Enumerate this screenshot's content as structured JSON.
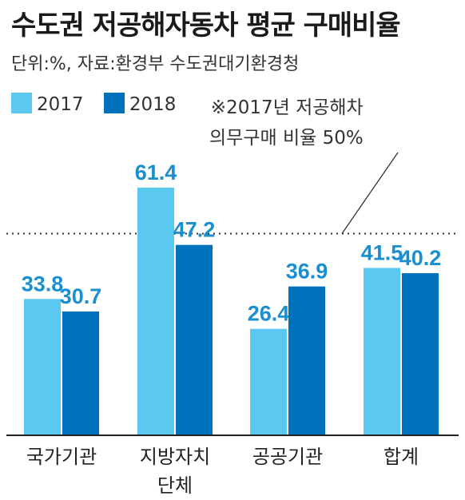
{
  "header": {
    "title": "수도권 저공해자동차 평균 구매비율",
    "subtitle": "단위:%, 자료:환경부 수도권대기환경청"
  },
  "legend": {
    "items": [
      {
        "label": "2017",
        "color": "#5bc8f2"
      },
      {
        "label": "2018",
        "color": "#0072bc"
      }
    ]
  },
  "note": {
    "line1": "※2017년 저공해차",
    "line2": "의무구매 비율 50%"
  },
  "colors": {
    "value_text": "#1a8fd0",
    "baseline": "#222222",
    "reference_line": "#333333"
  },
  "chart_data": {
    "type": "bar",
    "categories": [
      "국가기관",
      "지방자치\n단체",
      "공공기관",
      "합계"
    ],
    "series": [
      {
        "name": "2017",
        "values": [
          33.8,
          61.4,
          26.4,
          41.5
        ]
      },
      {
        "name": "2018",
        "values": [
          30.7,
          47.2,
          36.9,
          40.2
        ]
      }
    ],
    "reference_line": 50,
    "ylim": [
      0,
      70
    ],
    "grid": false,
    "legend_position": "top-left"
  }
}
